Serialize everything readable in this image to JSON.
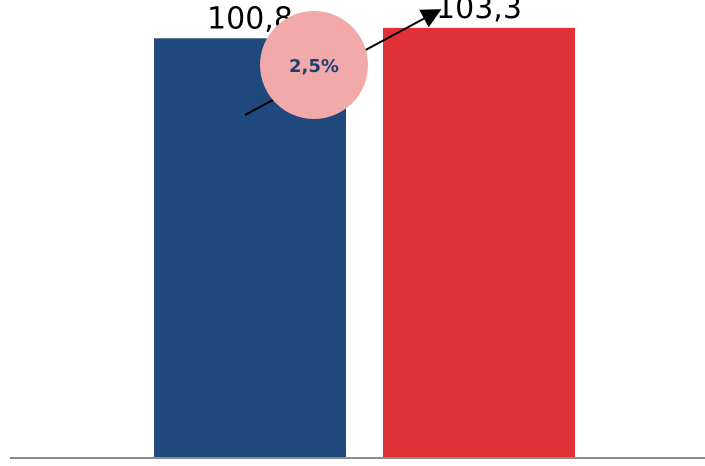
{
  "chart_data": {
    "type": "bar",
    "categories": [
      "",
      ""
    ],
    "values": [
      100.8,
      103.3
    ],
    "value_labels": [
      "100,8",
      "103,3"
    ],
    "colors": [
      "#1f497d",
      "#e03236"
    ],
    "growth_label": "2,5%",
    "growth_bubble_color": "#f2a9aa",
    "growth_text_color": "#1f3f72",
    "arrow_color": "#000000",
    "title": "",
    "xlabel": "",
    "ylabel": "",
    "ylim": [
      0,
      110
    ],
    "grid": false,
    "legend": "none"
  }
}
